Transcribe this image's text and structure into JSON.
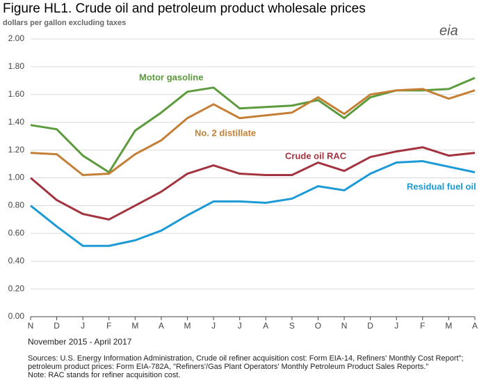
{
  "chart_data": {
    "type": "line",
    "title": "Figure HL1. Crude oil and petroleum product wholesale prices",
    "subtitle": "dollars per gallon excluding taxes",
    "logo": "eia",
    "x_label": "November 2015 - April 2017",
    "sources": [
      "Sources:  U.S. Energy Information Administration, Crude oil refiner acquisition cost:  Form EIA-14, Refiners' Monthly Cost Report\";",
      "petroleum product prices:  Form EIA-782A, \"Refiners'/Gas Plant Operators' Monthly Petroleum Product Sales Reports.\"",
      "Note:  RAC stands for refiner acquisition cost."
    ],
    "categories": [
      "N",
      "D",
      "J",
      "F",
      "M",
      "A",
      "M",
      "J",
      "J",
      "A",
      "S",
      "O",
      "N",
      "D",
      "J",
      "F",
      "M",
      "A"
    ],
    "series": [
      {
        "name": "Motor gasoline",
        "color": "#5b9b3c",
        "values": [
          1.38,
          1.35,
          1.16,
          1.04,
          1.34,
          1.47,
          1.62,
          1.65,
          1.5,
          1.51,
          1.52,
          1.56,
          1.43,
          1.58,
          1.63,
          1.63,
          1.64,
          1.72
        ]
      },
      {
        "name": "No. 2 distillate",
        "color": "#c47f35",
        "values": [
          1.18,
          1.17,
          1.02,
          1.03,
          1.17,
          1.27,
          1.43,
          1.53,
          1.43,
          1.45,
          1.47,
          1.58,
          1.46,
          1.6,
          1.63,
          1.64,
          1.57,
          1.63
        ]
      },
      {
        "name": "Crude oil RAC",
        "color": "#a3343f",
        "values": [
          1.0,
          0.84,
          0.74,
          0.7,
          0.8,
          0.9,
          1.03,
          1.09,
          1.03,
          1.02,
          1.02,
          1.11,
          1.05,
          1.15,
          1.19,
          1.22,
          1.16,
          1.18
        ]
      },
      {
        "name": "Residual fuel oil",
        "color": "#1b9ad6",
        "values": [
          0.8,
          0.65,
          0.51,
          0.51,
          0.55,
          0.62,
          0.73,
          0.83,
          0.83,
          0.82,
          0.85,
          0.94,
          0.91,
          1.03,
          1.11,
          1.12,
          1.08,
          1.04
        ]
      }
    ],
    "ylim": [
      0,
      2
    ],
    "yticks": [
      {
        "value": 0,
        "label": "0.00"
      },
      {
        "value": 0.2,
        "label": "0.20"
      },
      {
        "value": 0.4,
        "label": "0.40"
      },
      {
        "value": 0.6,
        "label": "0.60"
      },
      {
        "value": 0.8,
        "label": "0.80"
      },
      {
        "value": 1,
        "label": "1.00"
      },
      {
        "value": 1.2,
        "label": "1.20"
      },
      {
        "value": 1.4,
        "label": "1.40"
      },
      {
        "value": 1.6,
        "label": "1.60"
      },
      {
        "value": 1.8,
        "label": "1.80"
      },
      {
        "value": 2,
        "label": "2.00"
      }
    ],
    "grid": true
  }
}
